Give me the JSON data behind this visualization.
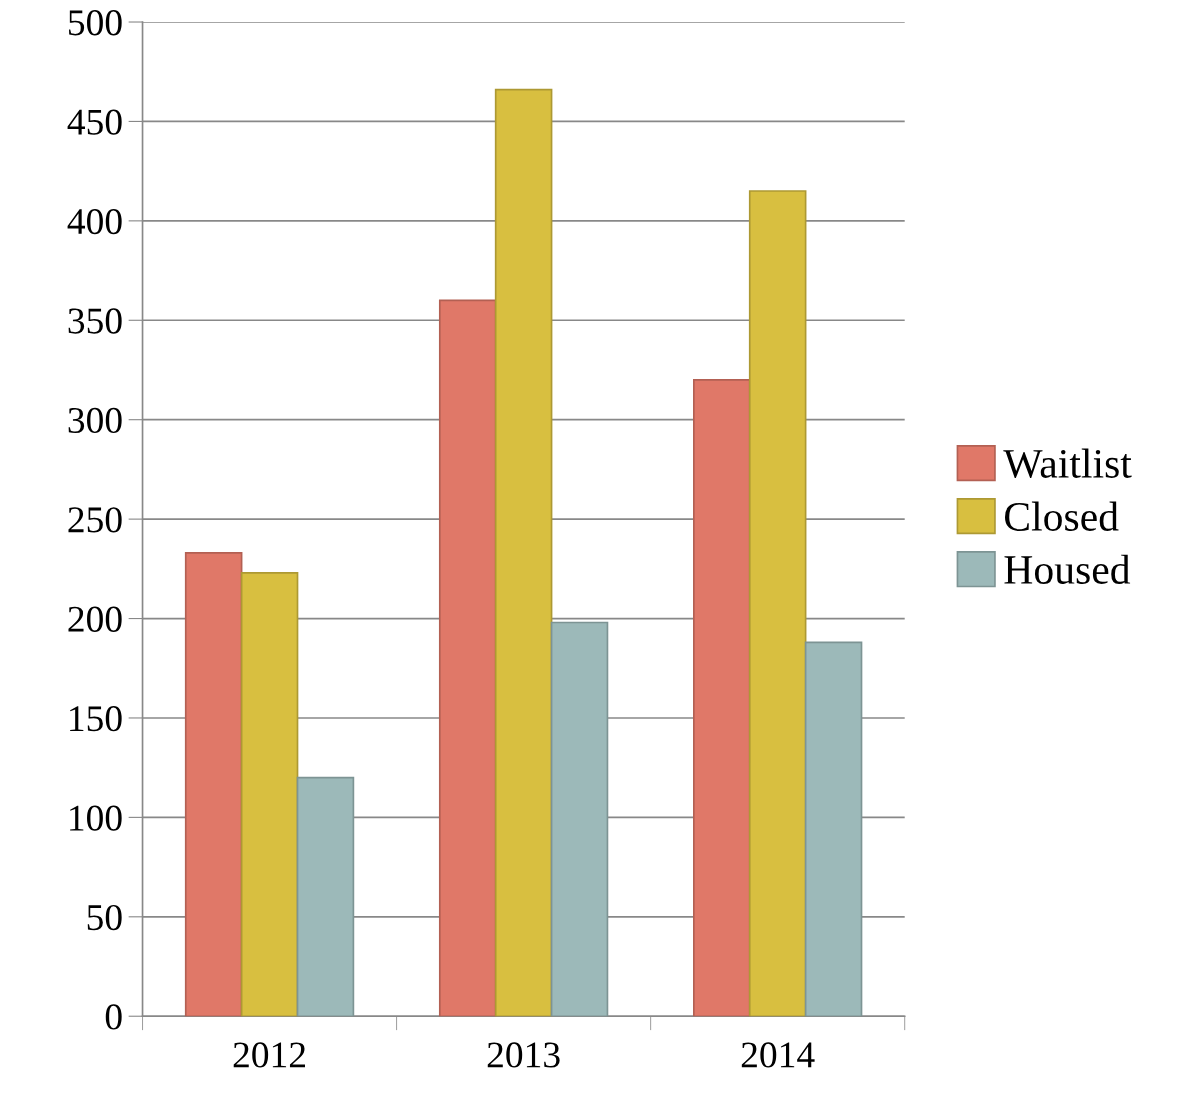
{
  "chart_data": {
    "type": "bar",
    "categories": [
      "2012",
      "2013",
      "2014"
    ],
    "series": [
      {
        "name": "Waitlist",
        "color": "#e07868",
        "values": [
          233,
          360,
          320
        ]
      },
      {
        "name": "Closed",
        "color": "#d8bf40",
        "values": [
          223,
          466,
          415
        ]
      },
      {
        "name": "Housed",
        "color": "#9cb9b9",
        "values": [
          120,
          198,
          188
        ]
      }
    ],
    "ylim": [
      0,
      500
    ],
    "yticks": [
      0,
      50,
      100,
      150,
      200,
      250,
      300,
      350,
      400,
      450,
      500
    ],
    "grid": "y",
    "legend": "right"
  }
}
